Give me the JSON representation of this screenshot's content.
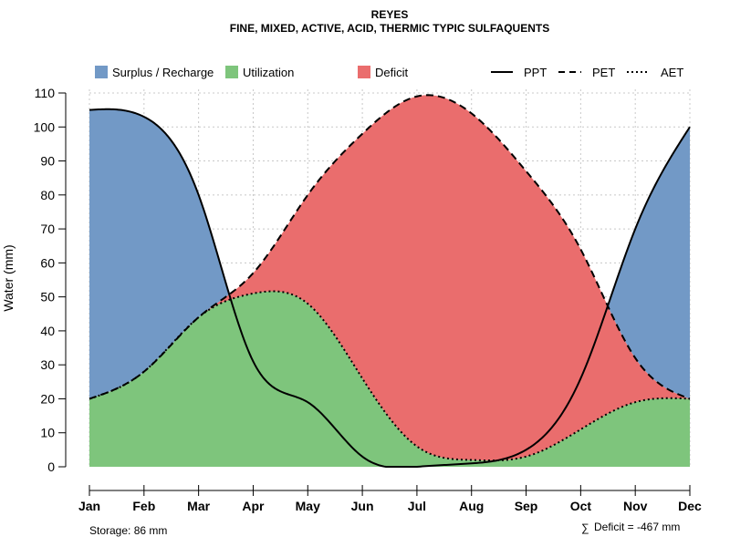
{
  "colors": {
    "surplus": "#7299c6",
    "utilization": "#7ec57c",
    "deficit": "#ea6d6d",
    "grid": "#c8c8c8",
    "line": "#000000"
  },
  "chart_data": {
    "type": "area",
    "title": "REYES",
    "subtitle": "FINE, MIXED, ACTIVE, ACID, THERMIC TYPIC SULFAQUENTS",
    "xlabel": "",
    "ylabel": "Water (mm)",
    "ylim": [
      0,
      110
    ],
    "yticks": [
      0,
      10,
      20,
      30,
      40,
      50,
      60,
      70,
      80,
      90,
      100,
      110
    ],
    "ytick_labels": [
      "0",
      "10",
      "20",
      "30",
      "40",
      "50",
      "60",
      "70",
      "80",
      "90",
      "100",
      "110"
    ],
    "categories": [
      "Jan",
      "Feb",
      "Mar",
      "Apr",
      "May",
      "Jun",
      "Jul",
      "Aug",
      "Sep",
      "Oct",
      "Nov",
      "Dec"
    ],
    "legend": {
      "placement": "top",
      "area_entries": [
        "Surplus / Recharge",
        "Utilization",
        "Deficit"
      ],
      "line_entries": [
        "PPT",
        "PET",
        "AET"
      ]
    },
    "series": [
      {
        "name": "PPT",
        "style": "solid",
        "values": [
          105,
          103,
          80,
          31,
          19,
          3,
          0,
          1,
          5,
          26,
          70,
          100
        ]
      },
      {
        "name": "PET",
        "style": "dashed",
        "values": [
          20,
          28,
          44,
          57,
          80,
          98,
          109,
          104,
          87,
          64,
          32,
          20
        ]
      },
      {
        "name": "AET",
        "style": "dotted",
        "values": [
          20,
          28,
          44,
          51,
          48,
          26,
          6,
          2,
          3,
          11,
          19,
          20
        ]
      }
    ],
    "annotations": {
      "storage": "Storage: 86 mm",
      "deficit_symbol": "∑",
      "deficit": "Deficit = -467 mm"
    }
  }
}
